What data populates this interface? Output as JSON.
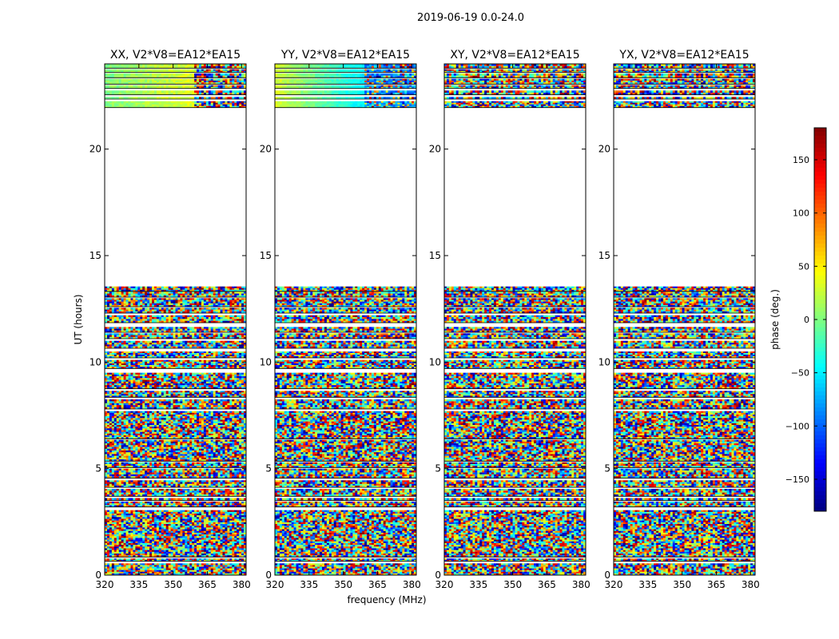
{
  "suptitle": "2019-06-19 0.0-24.0",
  "chart_data": {
    "type": "heatmap",
    "xlabel": "frequency (MHz)",
    "ylabel": "UT (hours)",
    "xlim": [
      320,
      382
    ],
    "ylim": [
      0,
      24
    ],
    "xticks": [
      320,
      335,
      350,
      365,
      380
    ],
    "yticks": [
      0,
      5,
      10,
      15,
      20
    ],
    "panels": [
      {
        "title": "XX, V2*V8=EA12*EA15",
        "pol": "XX"
      },
      {
        "title": "YY, V2*V8=EA12*EA15",
        "pol": "YY"
      },
      {
        "title": "XY, V2*V8=EA12*EA15",
        "pol": "XY"
      },
      {
        "title": "YX, V2*V8=EA12*EA15",
        "pol": "YX"
      }
    ],
    "data_rows_hours": [
      [
        0.0,
        0.55
      ],
      [
        0.65,
        0.78
      ],
      [
        0.85,
        3.05
      ],
      [
        3.2,
        3.45
      ],
      [
        3.5,
        3.62
      ],
      [
        3.7,
        4.05
      ],
      [
        4.12,
        4.45
      ],
      [
        4.55,
        5.0
      ],
      [
        5.05,
        5.3
      ],
      [
        5.35,
        6.35
      ],
      [
        6.4,
        7.7
      ],
      [
        7.8,
        8.25
      ],
      [
        8.35,
        8.65
      ],
      [
        8.75,
        9.5
      ],
      [
        9.7,
        10.1
      ],
      [
        10.2,
        10.5
      ],
      [
        10.65,
        11.0
      ],
      [
        11.1,
        11.35
      ],
      [
        11.4,
        11.65
      ],
      [
        11.85,
        12.2
      ],
      [
        12.3,
        12.55
      ],
      [
        12.6,
        13.0
      ],
      [
        13.05,
        13.3
      ],
      [
        13.32,
        13.55
      ],
      [
        21.95,
        22.25
      ],
      [
        22.35,
        22.45
      ],
      [
        22.55,
        22.75
      ],
      [
        22.85,
        23.0
      ],
      [
        23.05,
        23.3
      ],
      [
        23.35,
        23.55
      ],
      [
        23.6,
        23.75
      ],
      [
        23.8,
        24.0
      ]
    ],
    "colorbar": {
      "label": "phase (deg.)",
      "range": [
        -180,
        180
      ],
      "ticks": [
        150,
        100,
        50,
        0,
        -50,
        -100,
        -150
      ],
      "tick_labels": [
        "150",
        "100",
        "50",
        "0",
        "−50",
        "−100",
        "−150"
      ],
      "colormap": "jet"
    }
  }
}
